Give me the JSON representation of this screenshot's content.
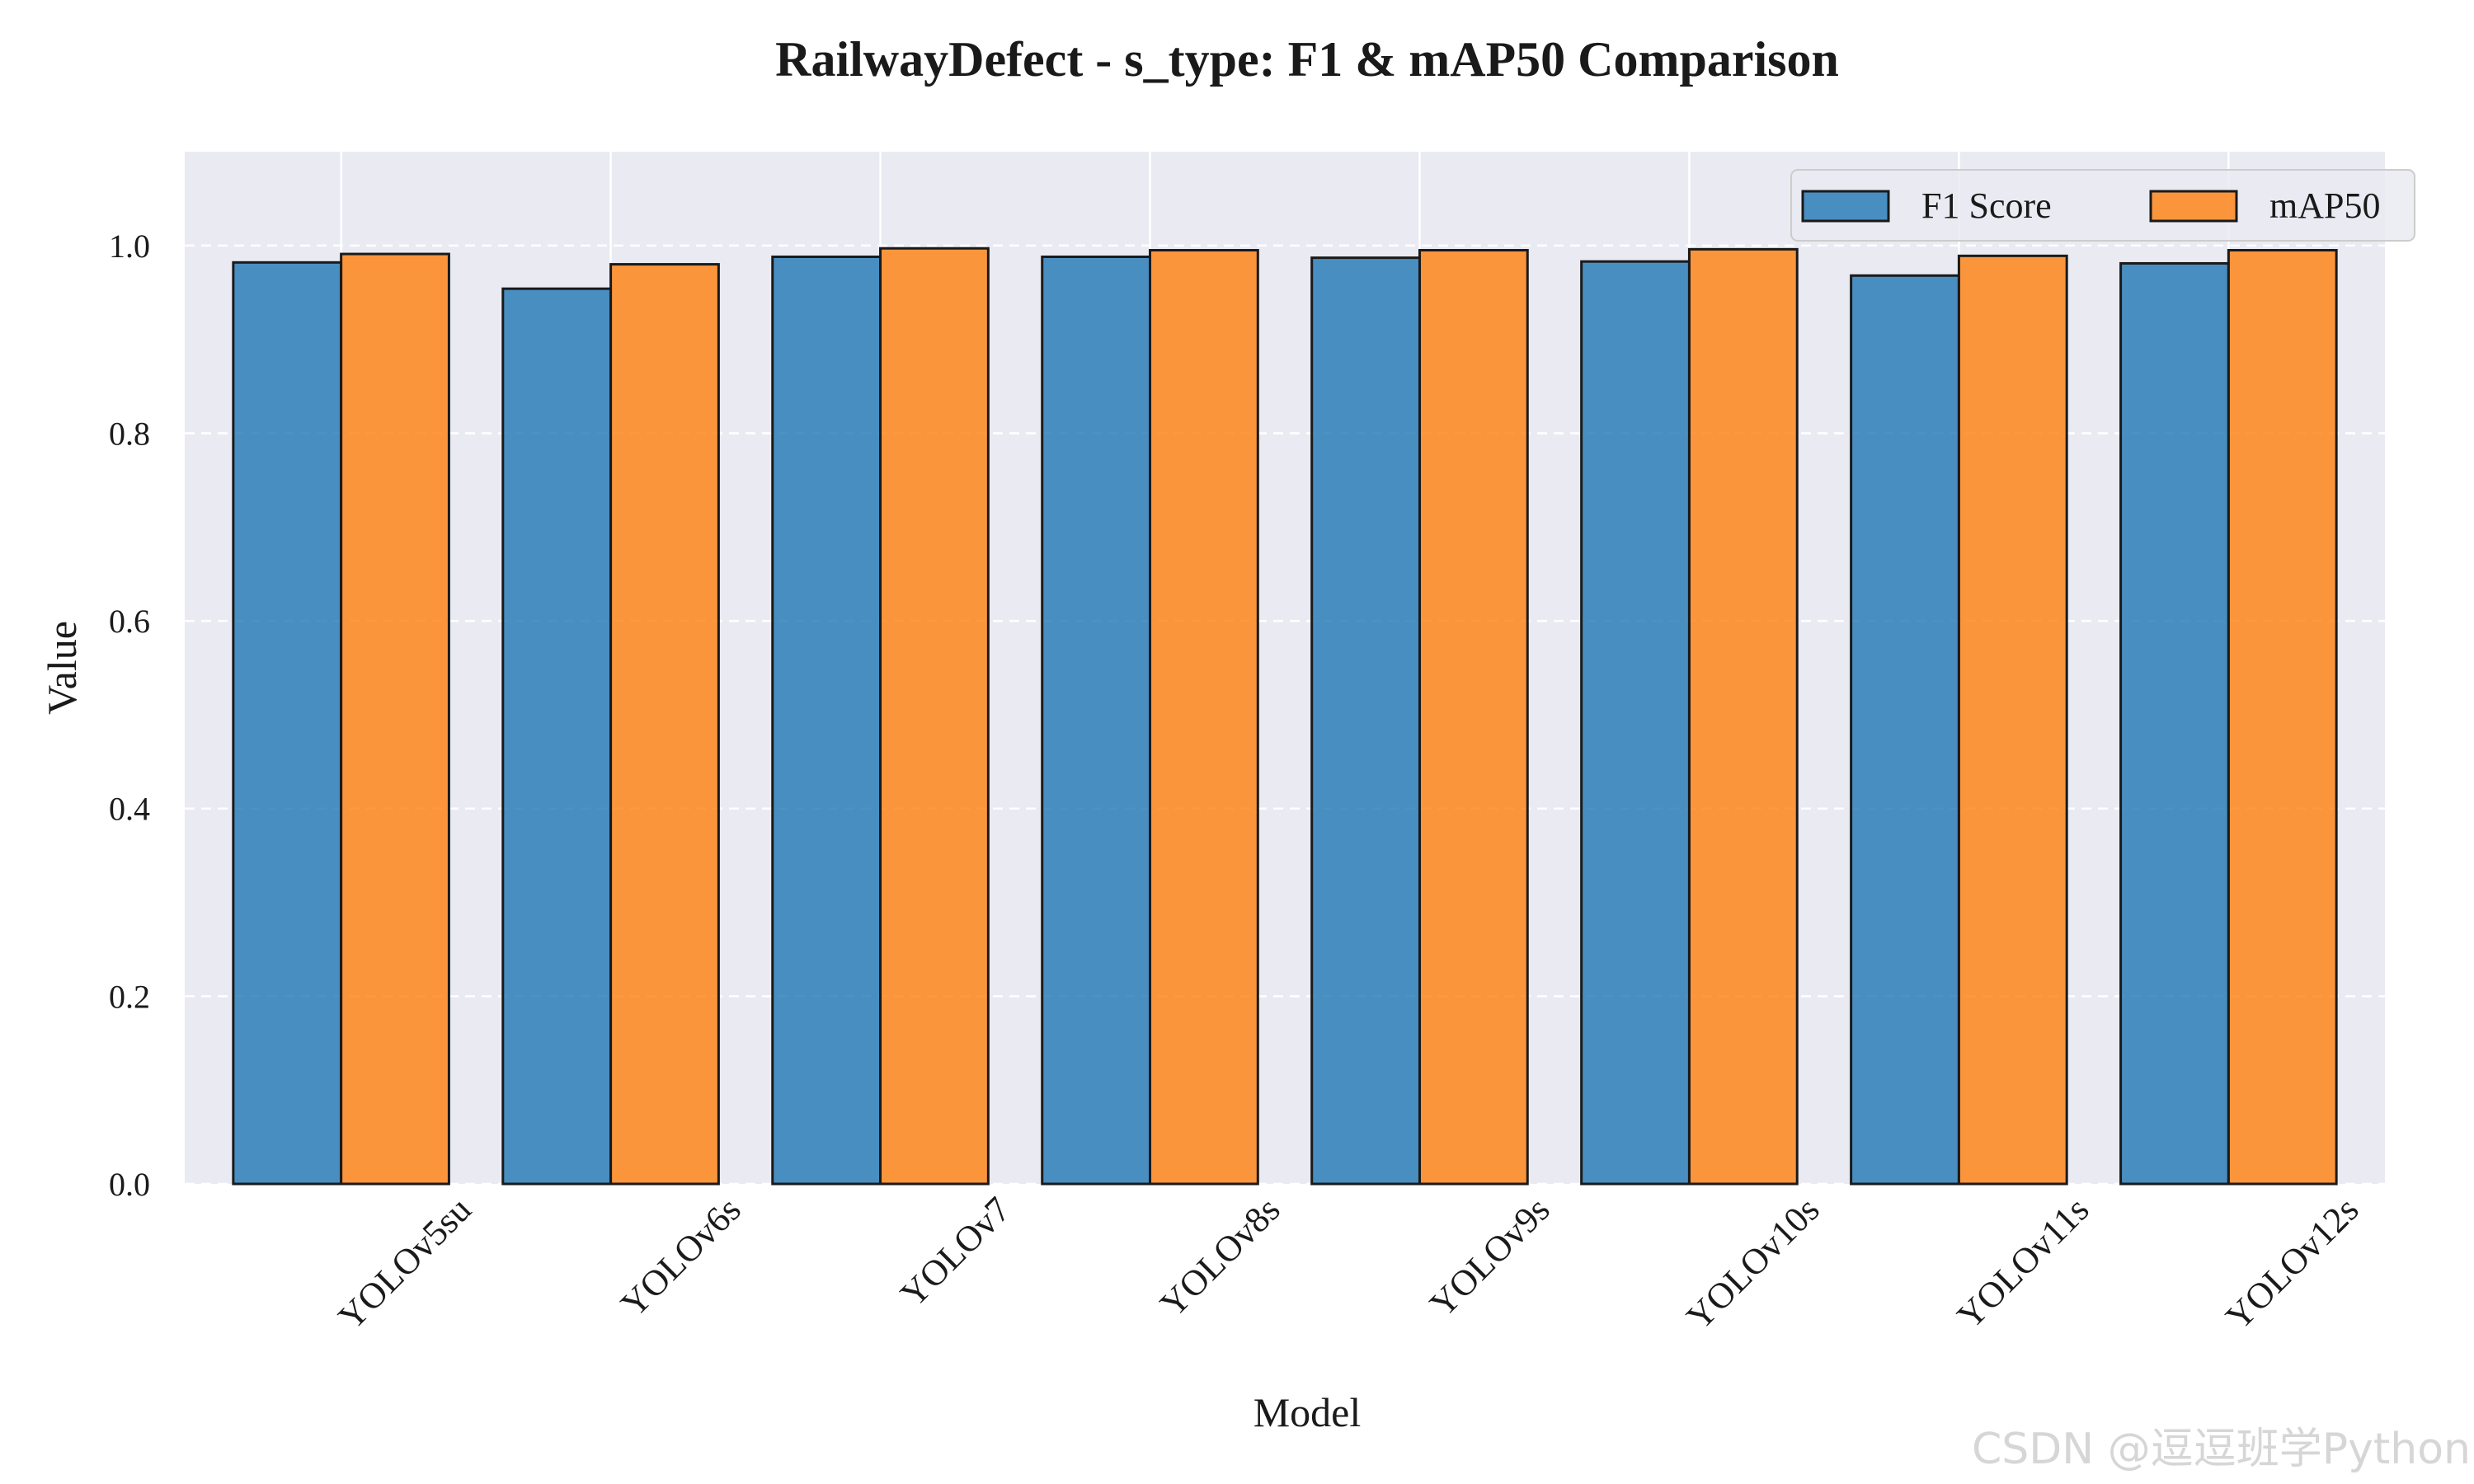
{
  "watermark": "CSDN @逗逗班学Python",
  "chart_data": {
    "type": "bar",
    "title": "RailwayDefect - s_type: F1 & mAP50 Comparison",
    "xlabel": "Model",
    "ylabel": "Value",
    "ylim": [
      0,
      1.1
    ],
    "yticks": [
      "0.0",
      "0.2",
      "0.4",
      "0.6",
      "0.8",
      "1.0"
    ],
    "categories": [
      "YOLOv5su",
      "YOLOv6s",
      "YOLOv7",
      "YOLOv8s",
      "YOLOv9s",
      "YOLOv10s",
      "YOLOv11s",
      "YOLOv12s"
    ],
    "series": [
      {
        "name": "F1 Score",
        "color": "#1f77b4",
        "values": [
          0.982,
          0.954,
          0.988,
          0.988,
          0.987,
          0.983,
          0.968,
          0.981
        ]
      },
      {
        "name": "mAP50",
        "color": "#ff7f0e",
        "values": [
          0.991,
          0.98,
          0.997,
          0.995,
          0.995,
          0.996,
          0.989,
          0.995
        ]
      }
    ],
    "grid": true,
    "legend_position": "top-right",
    "background": "#eaeaf2"
  }
}
